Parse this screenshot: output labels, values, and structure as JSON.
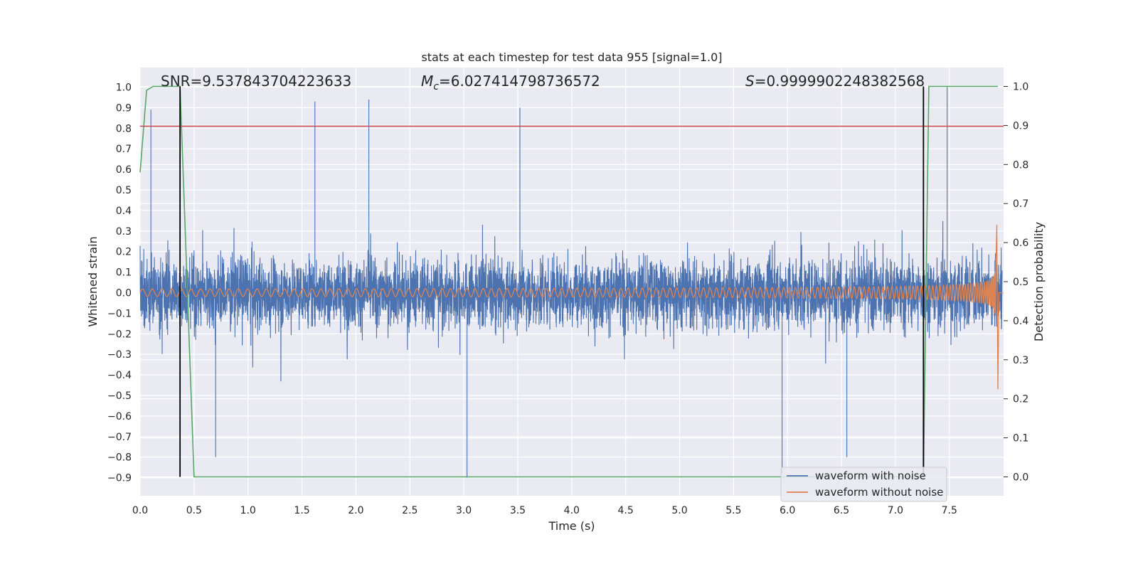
{
  "chart_data": {
    "type": "line",
    "title": "stats at each timestep for test data 955 [signal=1.0]",
    "xlabel": "Time (s)",
    "ylabel_left": "Whitened strain",
    "ylabel_right": "Detection probability",
    "xlim": [
      0.0,
      8.0
    ],
    "ylim_left": [
      -0.95,
      1.05
    ],
    "ylim_right": [
      -0.05,
      1.04
    ],
    "x_ticks": [
      "0.0",
      "0.5",
      "1.0",
      "1.5",
      "2.0",
      "2.5",
      "3.0",
      "3.5",
      "4.0",
      "4.5",
      "5.0",
      "5.5",
      "6.0",
      "6.5",
      "7.0",
      "7.5"
    ],
    "y_ticks_left": [
      "1.0",
      "0.9",
      "0.8",
      "0.7",
      "0.6",
      "0.5",
      "0.4",
      "0.3",
      "0.2",
      "0.1",
      "0.0",
      "−0.1",
      "−0.2",
      "−0.3",
      "−0.4",
      "−0.5",
      "−0.6",
      "−0.7",
      "−0.8",
      "−0.9"
    ],
    "y_ticks_right": [
      "1.0",
      "0.9",
      "0.8",
      "0.7",
      "0.6",
      "0.5",
      "0.4",
      "0.3",
      "0.2",
      "0.1",
      "0.0"
    ],
    "annotations": {
      "snr": "SNR=9.537843704223633",
      "mc_symbol": "M",
      "mc_sub": "c",
      "mc_value": "=6.027414798736572",
      "s_symbol": "S",
      "s_value": "=0.9999902248382568"
    },
    "series": [
      {
        "name": "waveform with noise",
        "color": "#4c72b0",
        "envelope": [
          -0.9,
          0.95
        ]
      },
      {
        "name": "waveform without noise",
        "color": "#dd8452",
        "t_end": 7.93,
        "peak": 0.33,
        "trough": -0.47
      },
      {
        "name": "detection probability",
        "color": "#55a868",
        "axis": "right",
        "x": [
          0.0,
          0.06,
          0.12,
          0.37,
          0.5,
          7.26,
          7.31,
          7.95
        ],
        "y": [
          0.78,
          0.99,
          1.0,
          1.0,
          0.0,
          0.0,
          1.0,
          1.0
        ]
      },
      {
        "name": "threshold",
        "color": "#c44e52",
        "axis": "left",
        "y": 0.81
      },
      {
        "name": "trigger start",
        "color": "#000000",
        "x": 0.37
      },
      {
        "name": "trigger end",
        "color": "#000000",
        "x": 7.26
      }
    ],
    "legend": {
      "position": "lower-right",
      "entries": [
        {
          "label": "waveform with noise",
          "color": "#4c72b0"
        },
        {
          "label": "waveform without noise",
          "color": "#dd8452"
        }
      ]
    },
    "grid": true,
    "background": "#eaeaf2"
  }
}
